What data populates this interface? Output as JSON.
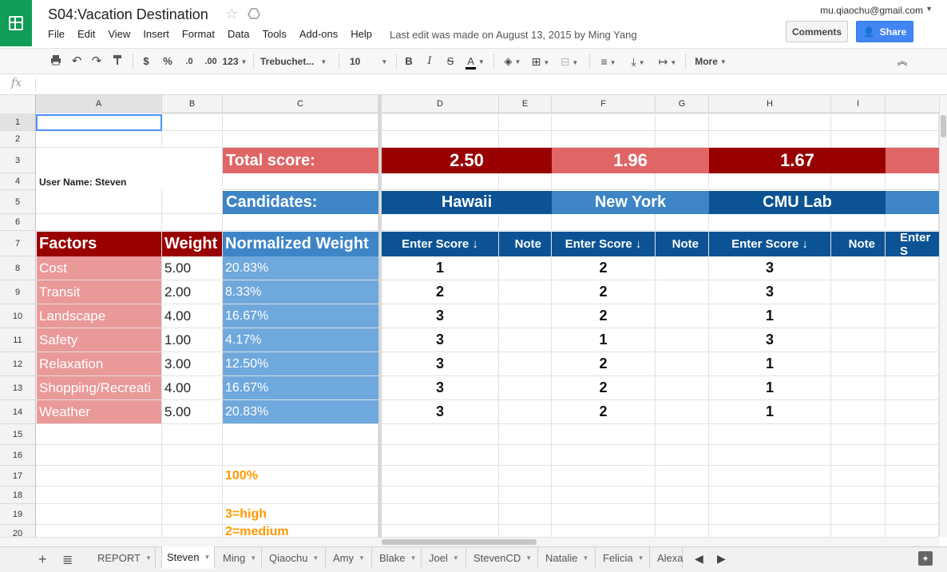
{
  "header": {
    "title": "S04:Vacation Destination",
    "menu": [
      "File",
      "Edit",
      "View",
      "Insert",
      "Format",
      "Data",
      "Tools",
      "Add-ons",
      "Help"
    ],
    "last_edit": "Last edit was made on August 13, 2015 by Ming Yang",
    "user_email": "mu.qiaochu@gmail.com",
    "comments_label": "Comments",
    "share_label": "Share"
  },
  "toolbar": {
    "currency": "$",
    "percent": "%",
    "dec_decrease": ".0",
    "dec_increase": ".00",
    "more_formats": "123",
    "font": "Trebuchet...",
    "font_size": "10",
    "bold": "B",
    "italic": "I",
    "strike": "S",
    "text_color": "A",
    "more": "More"
  },
  "formula_bar": {
    "fx": "fx",
    "value": ""
  },
  "columns": [
    "A",
    "B",
    "C",
    "D",
    "E",
    "F",
    "G",
    "H",
    "I"
  ],
  "rows": [
    "1",
    "2",
    "3",
    "4",
    "5",
    "6",
    "7",
    "8",
    "9",
    "10",
    "11",
    "12",
    "13",
    "14",
    "15",
    "16",
    "17",
    "18",
    "19",
    "20"
  ],
  "sheet": {
    "total_score_label": "Total score:",
    "candidates_label": "Candidates:",
    "user_name": "User Name: Steven",
    "factors_header": "Factors",
    "weight_header": "Weight",
    "normalized_header": "Normalized Weight",
    "enter_score": "Enter Score ↓",
    "note": "Note",
    "enter_score_cut": "Enter S",
    "total_scores": [
      "2.50",
      "1.96",
      "1.67"
    ],
    "candidates": [
      "Hawaii",
      "New York",
      "CMU Lab"
    ],
    "factors": [
      {
        "name": "Cost",
        "weight": "5.00",
        "norm": "20.83%",
        "scores": [
          "1",
          "2",
          "3"
        ]
      },
      {
        "name": "Transit",
        "weight": "2.00",
        "norm": "8.33%",
        "scores": [
          "2",
          "2",
          "3"
        ]
      },
      {
        "name": "Landscape",
        "weight": "4.00",
        "norm": "16.67%",
        "scores": [
          "3",
          "2",
          "1"
        ]
      },
      {
        "name": "Safety",
        "weight": "1.00",
        "norm": "4.17%",
        "scores": [
          "3",
          "1",
          "3"
        ]
      },
      {
        "name": "Relaxation",
        "weight": "3.00",
        "norm": "12.50%",
        "scores": [
          "3",
          "2",
          "1"
        ]
      },
      {
        "name": "Shopping/Recreati",
        "weight": "4.00",
        "norm": "16.67%",
        "scores": [
          "3",
          "2",
          "1"
        ]
      },
      {
        "name": "Weather",
        "weight": "5.00",
        "norm": "20.83%",
        "scores": [
          "3",
          "2",
          "1"
        ]
      }
    ],
    "total_pct": "100%",
    "legend_high": "3=high",
    "legend_medium": "2=medium"
  },
  "tabs": [
    "REPORT",
    "Steven",
    "Ming",
    "Qiaochu",
    "Amy",
    "Blake",
    "Joel",
    "StevenCD",
    "Natalie",
    "Felicia",
    "Alexa"
  ],
  "active_tab": "Steven",
  "colors": {
    "dark_red": "#990000",
    "light_red": "#e06666",
    "pink": "#ea9999",
    "dark_blue": "#0b5394",
    "mid_blue": "#3d85c6",
    "light_blue": "#6fa8dc",
    "orange": "#ff9900",
    "sheets_green": "#0f9d58",
    "share_blue": "#4285f4"
  }
}
